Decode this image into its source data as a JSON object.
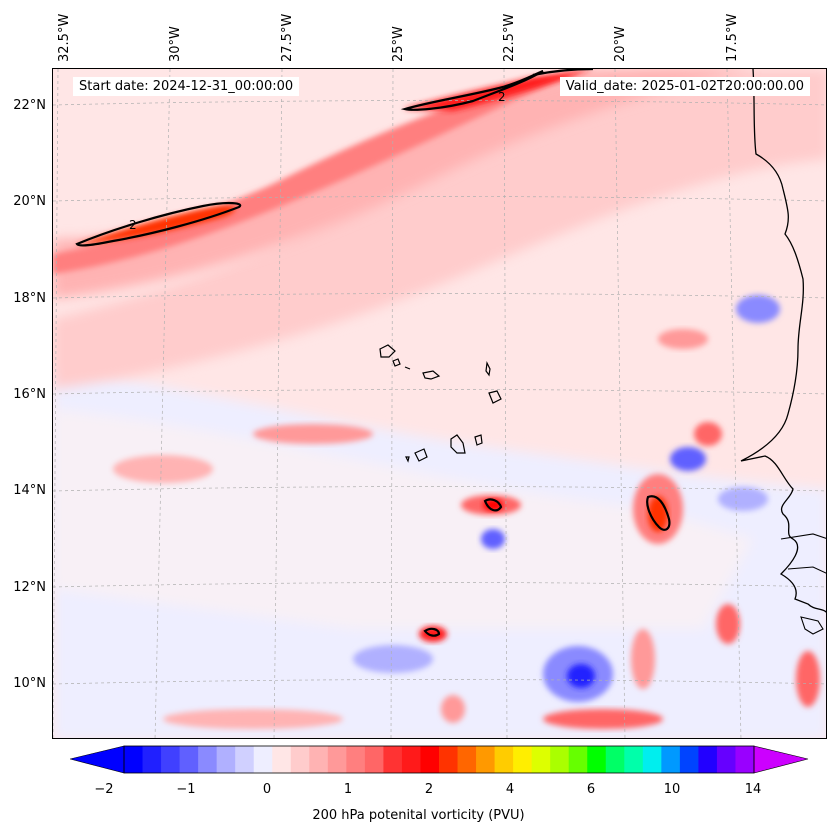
{
  "map": {
    "start_date": "Start date: 2024-12-31_00:00:00",
    "valid_date": "Valid_date: 2025-01-02T20:00:00.00",
    "longitude_labels": [
      "32.5°W",
      "30°W",
      "27.5°W",
      "25°W",
      "22.5°W",
      "20°W",
      "17.5°W"
    ],
    "latitude_labels": [
      "22°N",
      "20°N",
      "18°N",
      "16°N",
      "14°N",
      "12°N",
      "10°N"
    ],
    "contour_label": "2",
    "colors": {
      "ocean_background": "#eef0ff",
      "land_background": "#ffe6e6",
      "coastline": "#000000",
      "gridline": "#b0b0b0"
    }
  },
  "colorbar": {
    "label": "200 hPa potenital vorticity (PVU)",
    "tick_labels": [
      "−2",
      "−1",
      "0",
      "1",
      "2",
      "4",
      "6",
      "10",
      "14"
    ],
    "colors": [
      "#0000ff",
      "#2020ff",
      "#4040ff",
      "#6060ff",
      "#8a8aff",
      "#b0b0ff",
      "#d0d0ff",
      "#eeeeff",
      "#ffe6e6",
      "#ffcccc",
      "#ffb3b3",
      "#ff9999",
      "#ff7f7f",
      "#ff6666",
      "#ff3333",
      "#ff1a1a",
      "#ff0000",
      "#ff3300",
      "#ff6600",
      "#ff9900",
      "#ffcc00",
      "#ffee00",
      "#ddff00",
      "#aaff00",
      "#66ff00",
      "#00ff00",
      "#00ff66",
      "#00ffaa",
      "#00eeee",
      "#0099ff",
      "#0044ff",
      "#2200ff",
      "#6600ff",
      "#9900ff"
    ],
    "extend_low_color": "#0000ff",
    "extend_high_color": "#cc00ff"
  }
}
